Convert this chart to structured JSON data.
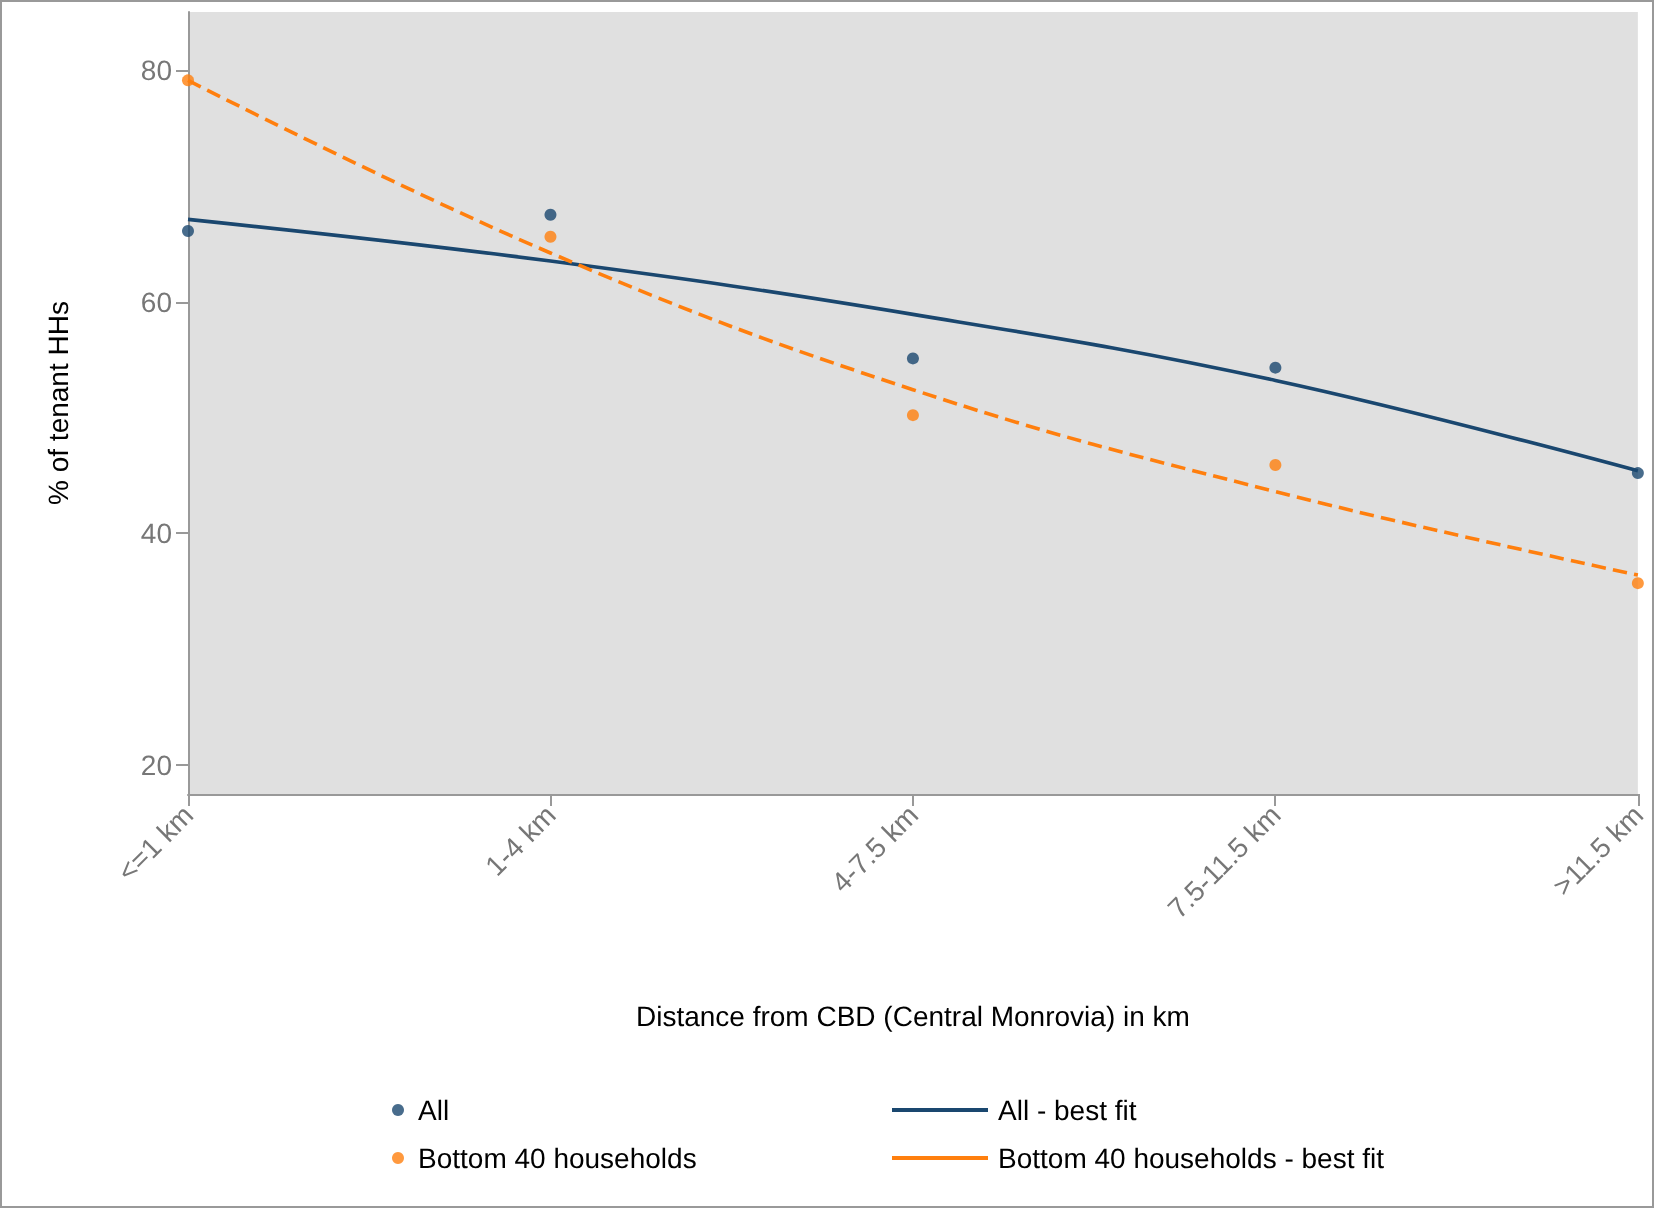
{
  "chart_data": {
    "type": "scatter",
    "xlabel": "Distance from CBD (Central Monrovia) in km",
    "ylabel": "% of tenant HHs",
    "categories": [
      "<=1 km",
      "1-4 km",
      "4-7.5 km",
      "7.5-11.5 km",
      ">11.5 km"
    ],
    "series": [
      {
        "name": "All",
        "color": "#1a476f",
        "marker": "circle",
        "values": [
          66.1,
          67.5,
          55.1,
          54.3,
          45.2
        ]
      },
      {
        "name": "Bottom 40 households",
        "color": "#ff7f0e",
        "marker": "circle",
        "values": [
          79.1,
          65.6,
          50.2,
          45.9,
          35.7
        ]
      },
      {
        "name": "All - best fit",
        "type": "line",
        "color": "#1a476f",
        "marker": "none",
        "line_style": "solid",
        "values": [
          67.1,
          63.5,
          58.9,
          53.2,
          45.4
        ]
      },
      {
        "name": "Bottom 40 households - best fit",
        "type": "line",
        "color": "#ff7f0e",
        "marker": "none",
        "line_style": "dashed",
        "values": [
          79.1,
          64.2,
          52.4,
          43.6,
          36.4
        ]
      }
    ],
    "ylim": [
      17.5,
      85
    ],
    "yticks": [
      20,
      40,
      60,
      80
    ],
    "grid": false,
    "legend": "bottom"
  }
}
